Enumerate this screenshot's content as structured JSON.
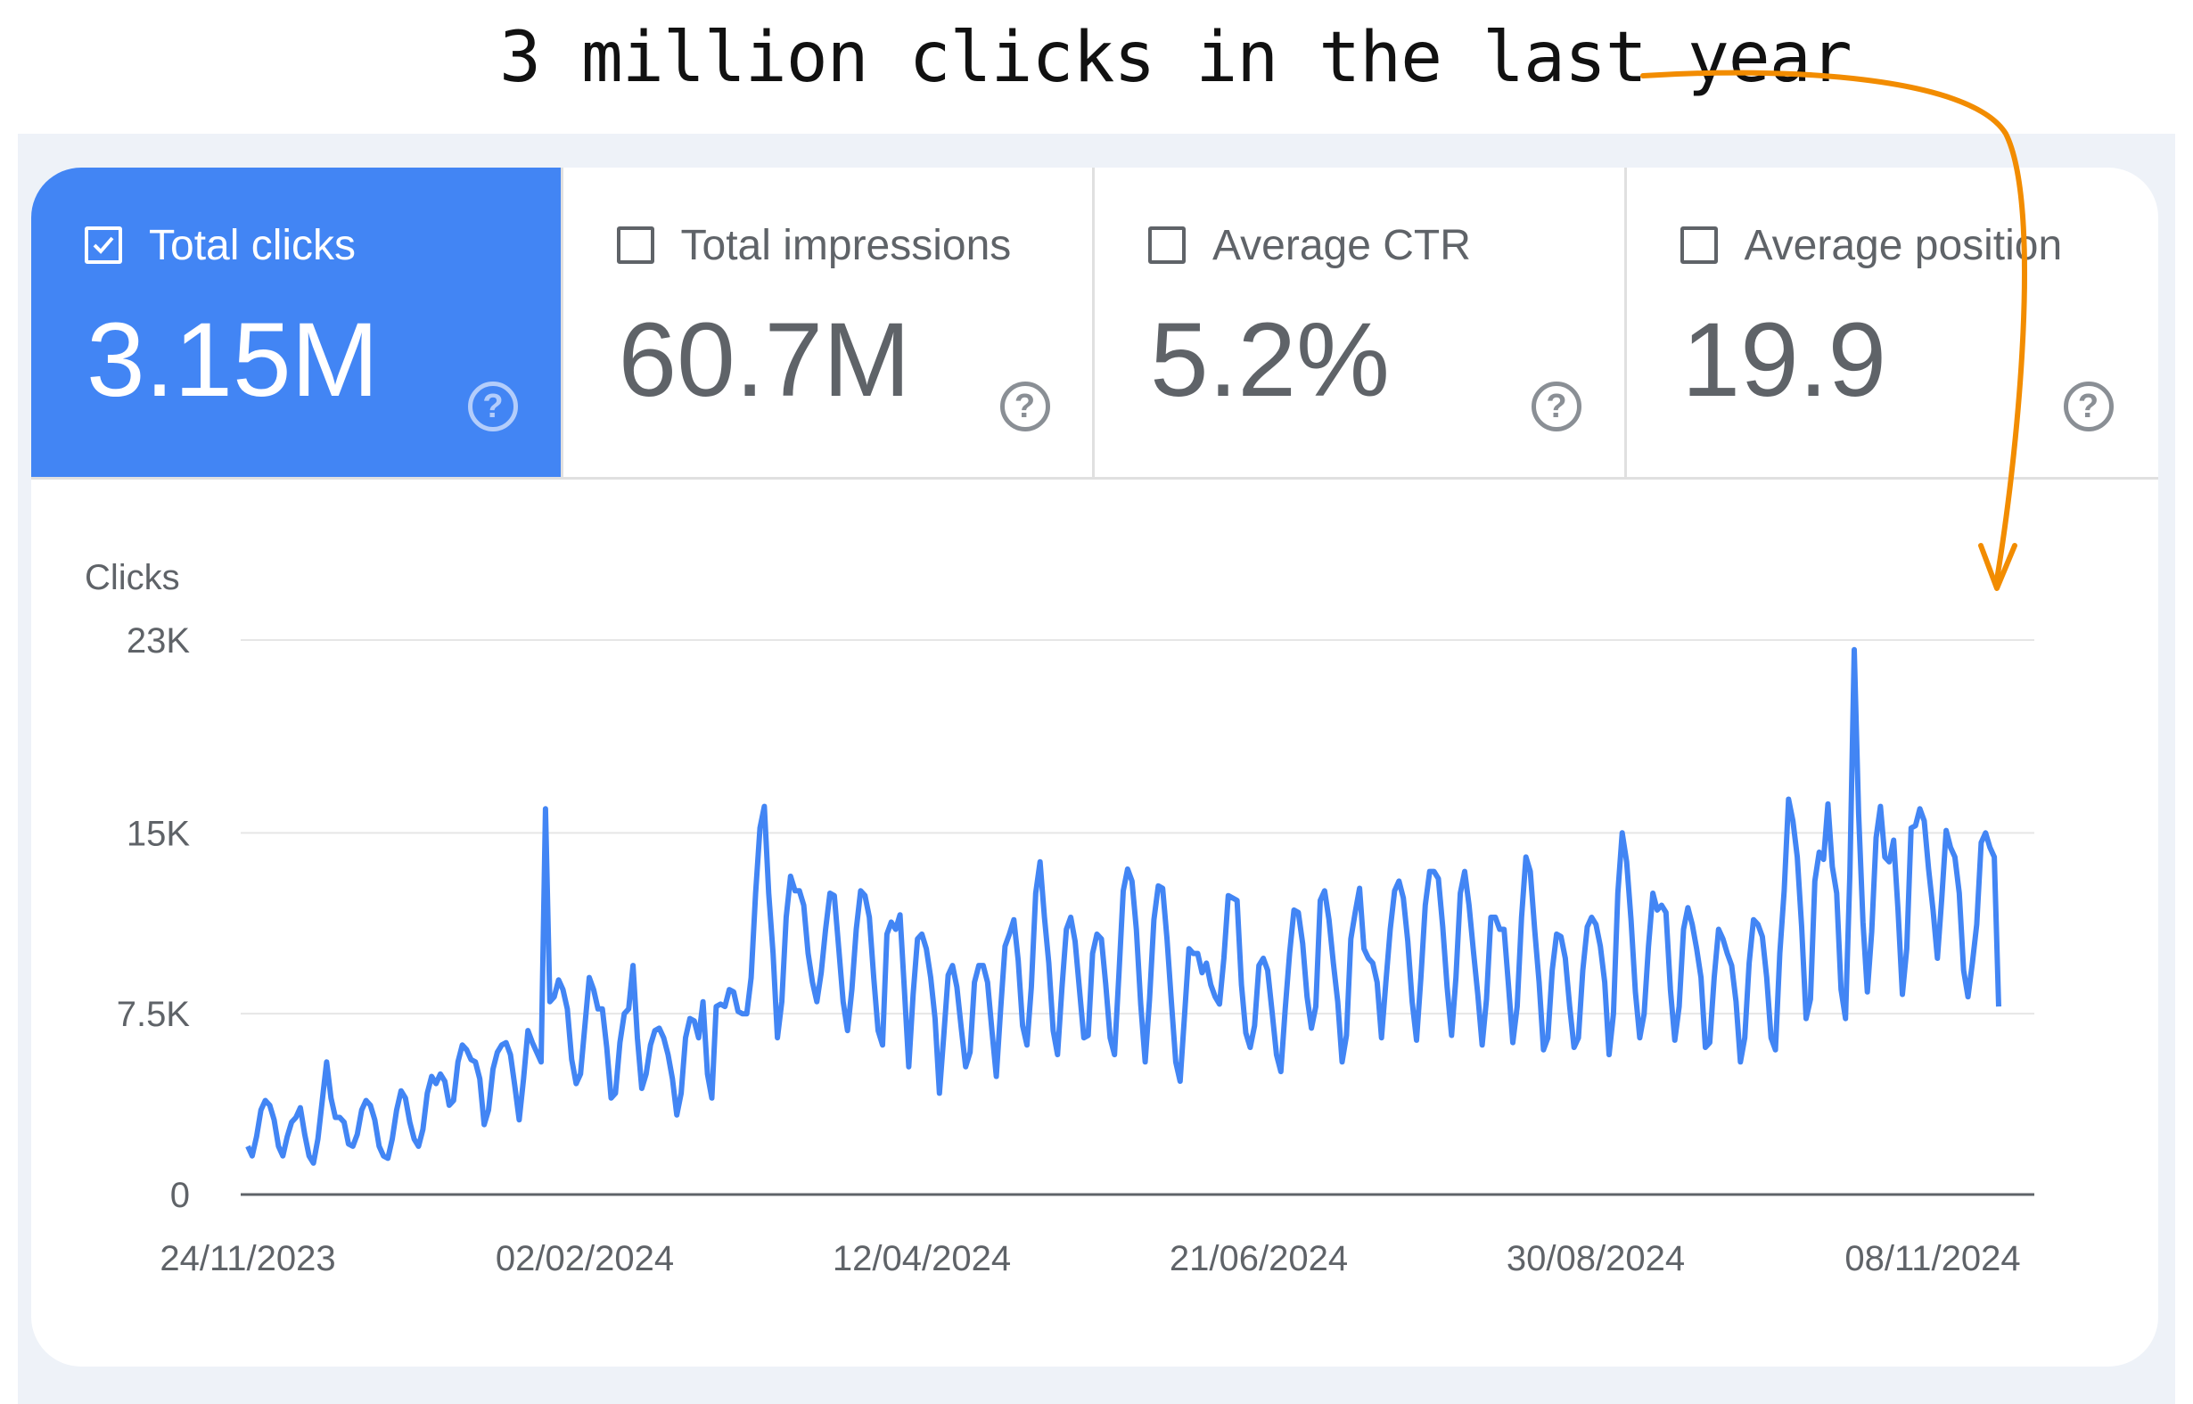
{
  "annotation": {
    "text": "3 million clicks in the last year",
    "arrow_color": "#f28c00"
  },
  "metrics": [
    {
      "label": "Total clicks",
      "value": "3.15M",
      "checked": true
    },
    {
      "label": "Total impressions",
      "value": "60.7M",
      "checked": false
    },
    {
      "label": "Average CTR",
      "value": "5.2%",
      "checked": false
    },
    {
      "label": "Average position",
      "value": "19.9",
      "checked": false
    }
  ],
  "colors": {
    "accent": "#4285f4",
    "line": "#4285f4",
    "arrow": "#f28c00"
  },
  "icons": {
    "checkbox": "checkbox-icon",
    "help": "help-circle-icon"
  },
  "chart_data": {
    "type": "line",
    "title": "",
    "xlabel": "",
    "ylabel": "Clicks",
    "ylim": [
      0,
      23000
    ],
    "yticks": [
      {
        "value": 0,
        "label": "0"
      },
      {
        "value": 7500,
        "label": "7.5K"
      },
      {
        "value": 15000,
        "label": "15K"
      },
      {
        "value": 23000,
        "label": "23K"
      }
    ],
    "xtick_labels": [
      "24/11/2023",
      "02/02/2024",
      "12/04/2024",
      "21/06/2024",
      "30/08/2024",
      "08/11/2024"
    ],
    "x_start": "2023-11-21",
    "grid": true,
    "legend": "none",
    "series": [
      {
        "values": [
          2000,
          1600,
          2400,
          3500,
          3900,
          3700,
          3100,
          2000,
          1600,
          2400,
          3000,
          3200,
          3600,
          2500,
          1600,
          1300,
          2300,
          3900,
          5500,
          4000,
          3200,
          3200,
          3000,
          2100,
          2000,
          2500,
          3500,
          3900,
          3700,
          3100,
          2000,
          1600,
          1500,
          2300,
          3500,
          4300,
          4000,
          3000,
          2300,
          2000,
          2700,
          4200,
          4900,
          4600,
          5000,
          4700,
          3700,
          3900,
          5500,
          6200,
          6000,
          5600,
          5500,
          4800,
          2900,
          3500,
          5200,
          5900,
          6200,
          6300,
          5800,
          4500,
          3100,
          4800,
          6800,
          6300,
          5900,
          5500,
          16000,
          8000,
          8200,
          8900,
          8500,
          7700,
          5600,
          4600,
          5000,
          7000,
          9000,
          8500,
          7700,
          7700,
          6100,
          4000,
          4200,
          6300,
          7500,
          7700,
          9500,
          6500,
          4400,
          5000,
          6200,
          6800,
          6900,
          6500,
          5800,
          4800,
          3300,
          4200,
          6500,
          7300,
          7200,
          6500,
          8000,
          5000,
          4000,
          7800,
          7900,
          7800,
          8500,
          8400,
          7600,
          7500,
          7500,
          9000,
          12500,
          15200,
          16100,
          12500,
          10000,
          6500,
          8000,
          11500,
          13200,
          12600,
          12600,
          12000,
          10000,
          8800,
          8000,
          9200,
          11000,
          12500,
          12400,
          10200,
          8000,
          6800,
          8500,
          11000,
          12600,
          12400,
          11500,
          9000,
          6800,
          6200,
          10800,
          11300,
          11000,
          11600,
          8500,
          5300,
          8300,
          10600,
          10800,
          10200,
          9000,
          7300,
          4200,
          6600,
          9100,
          9500,
          8600,
          6900,
          5300,
          5900,
          8800,
          9500,
          9500,
          8800,
          6800,
          4900,
          7700,
          10300,
          10800,
          11400,
          9700,
          7000,
          6200,
          8600,
          12500,
          13800,
          11500,
          9600,
          6800,
          5800,
          8600,
          11000,
          11500,
          10500,
          8500,
          6500,
          6600,
          10000,
          10800,
          10600,
          8700,
          6500,
          5800,
          9100,
          12600,
          13500,
          13000,
          11000,
          7900,
          5500,
          8100,
          11400,
          12800,
          12700,
          10600,
          8000,
          5500,
          4700,
          7400,
          10200,
          10000,
          10000,
          9200,
          9600,
          8700,
          8200,
          7900,
          9800,
          12400,
          12300,
          12200,
          8700,
          6700,
          6100,
          7000,
          9500,
          9800,
          9300,
          7600,
          5800,
          5100,
          7700,
          10000,
          11800,
          11700,
          10400,
          8200,
          6900,
          7800,
          12200,
          12600,
          11400,
          9600,
          8000,
          5500,
          6600,
          10600,
          11700,
          12700,
          10200,
          9800,
          9600,
          8800,
          6500,
          8800,
          11000,
          12600,
          13000,
          12300,
          10500,
          8000,
          6400,
          9000,
          12000,
          13400,
          13400,
          13100,
          11100,
          8600,
          6600,
          9000,
          12500,
          13400,
          12000,
          10100,
          8300,
          6200,
          8100,
          11500,
          11500,
          11000,
          11000,
          8700,
          6300,
          7800,
          11500,
          14000,
          13400,
          11000,
          8800,
          6000,
          6500,
          9300,
          10800,
          10700,
          9800,
          7800,
          6100,
          6500,
          9300,
          11100,
          11500,
          11200,
          10300,
          8800,
          5800,
          7500,
          12500,
          15000,
          13800,
          11400,
          8400,
          6500,
          7500,
          10300,
          12500,
          11800,
          12000,
          11700,
          8500,
          6400,
          7800,
          11000,
          11900,
          11200,
          10200,
          9000,
          6100,
          6300,
          9000,
          11000,
          10600,
          10000,
          9500,
          8000,
          5500,
          6500,
          9600,
          11400,
          11200,
          10700,
          9000,
          6500,
          6000,
          10000,
          12600,
          16400,
          15500,
          14000,
          11100,
          7300,
          8100,
          13000,
          14200,
          13900,
          16200,
          13600,
          12500,
          8500,
          7300,
          13300,
          22600,
          15800,
          11300,
          8400,
          10900,
          14800,
          16100,
          14000,
          13800,
          14700,
          11800,
          8300,
          10200,
          15200,
          15300,
          16000,
          15500,
          13500,
          11800,
          9800,
          12300,
          15100,
          14400,
          14000,
          12500,
          9300,
          8200,
          9600,
          11200,
          14600,
          15000,
          14400,
          14000,
          7800
        ]
      }
    ]
  }
}
